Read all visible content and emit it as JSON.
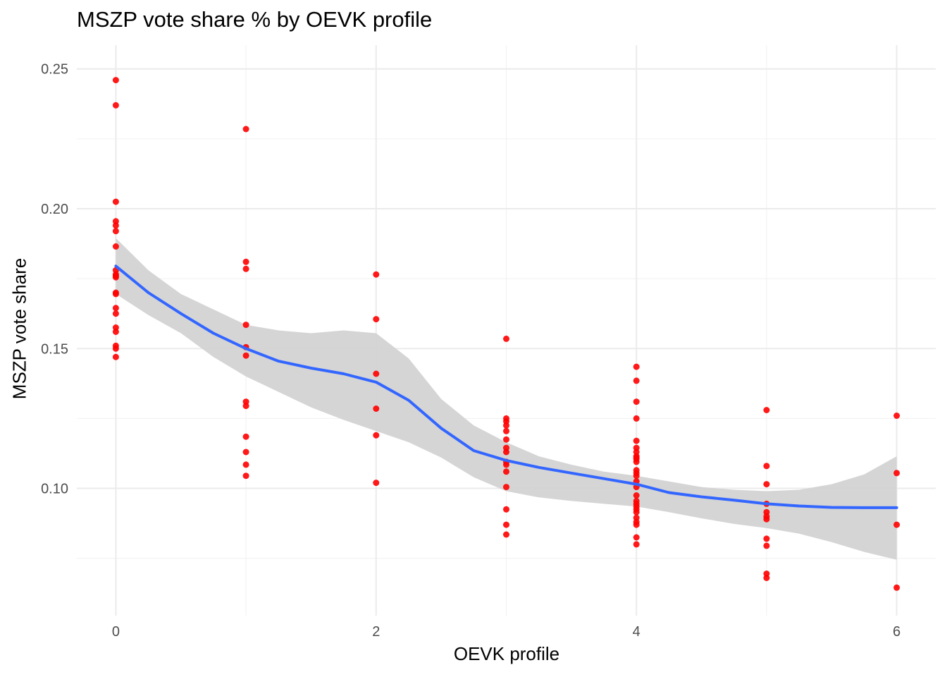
{
  "chart_data": {
    "type": "scatter",
    "title": "MSZP vote share % by OEVK profile",
    "xlabel": "OEVK profile",
    "ylabel": "MSZP vote share",
    "xlim": [
      -0.3,
      6.3
    ],
    "ylim": [
      0.0545,
      0.2585
    ],
    "x_ticks": [
      0,
      2,
      4,
      6
    ],
    "x_tick_labels": [
      "0",
      "2",
      "4",
      "6"
    ],
    "y_ticks": [
      0.1,
      0.15,
      0.2,
      0.25
    ],
    "y_tick_labels": [
      "0.10",
      "0.15",
      "0.20",
      "0.25"
    ],
    "grid": true,
    "point_color": "#ff0000",
    "smooth_color": "#3366ff",
    "ribbon_color": "#d3d3d3",
    "points": {
      "x": [
        0,
        0,
        0,
        0,
        0,
        0,
        0,
        0,
        0,
        0,
        0,
        0,
        0,
        0,
        0,
        0,
        0,
        0,
        0,
        0,
        1,
        1,
        1,
        1,
        1,
        1,
        1,
        1,
        1,
        1,
        1,
        1,
        2,
        2,
        2,
        2,
        2,
        2,
        3,
        3,
        3,
        3,
        3,
        3,
        3,
        3,
        3,
        3,
        3,
        3,
        3,
        3,
        3,
        4,
        4,
        4,
        4,
        4,
        4,
        4,
        4,
        4,
        4,
        4,
        4,
        4,
        4,
        4,
        4,
        4,
        4,
        4,
        4,
        4,
        4,
        4,
        4,
        4,
        4,
        4,
        5,
        5,
        5,
        5,
        5,
        5,
        5,
        5,
        5,
        5,
        5,
        6,
        6,
        6,
        6
      ],
      "y": [
        0.246,
        0.237,
        0.2025,
        0.1955,
        0.194,
        0.192,
        0.1865,
        0.178,
        0.1765,
        0.1755,
        0.17,
        0.1645,
        0.1625,
        0.1575,
        0.156,
        0.151,
        0.15,
        0.147,
        0.1695,
        0.176,
        0.2285,
        0.181,
        0.1785,
        0.1585,
        0.1505,
        0.1475,
        0.131,
        0.1295,
        0.1185,
        0.113,
        0.1085,
        0.1045,
        0.1765,
        0.1605,
        0.141,
        0.1285,
        0.119,
        0.102,
        0.1535,
        0.125,
        0.124,
        0.1205,
        0.1175,
        0.113,
        0.1095,
        0.1085,
        0.106,
        0.1005,
        0.0925,
        0.087,
        0.0835,
        0.1225,
        0.1145,
        0.1435,
        0.1385,
        0.131,
        0.125,
        0.117,
        0.1145,
        0.113,
        0.1115,
        0.1095,
        0.1065,
        0.1045,
        0.1025,
        0.0975,
        0.0955,
        0.0935,
        0.0925,
        0.0915,
        0.0895,
        0.088,
        0.087,
        0.0825,
        0.08,
        0.1105,
        0.1055,
        0.0945,
        0.1005,
        0.111,
        0.128,
        0.108,
        0.1015,
        0.0945,
        0.0915,
        0.089,
        0.082,
        0.0795,
        0.0695,
        0.068,
        0.09,
        0.126,
        0.1055,
        0.087,
        0.0645
      ]
    },
    "smooth": {
      "x": [
        0,
        0.25,
        0.5,
        0.75,
        1,
        1.25,
        1.5,
        1.75,
        2,
        2.25,
        2.5,
        2.75,
        3,
        3.25,
        3.5,
        3.75,
        4,
        4.25,
        4.5,
        4.75,
        5,
        5.25,
        5.5,
        5.75,
        6
      ],
      "y": [
        0.1795,
        0.17,
        0.1625,
        0.1555,
        0.15,
        0.1455,
        0.143,
        0.141,
        0.138,
        0.1315,
        0.1215,
        0.1135,
        0.11,
        0.1075,
        0.1055,
        0.1035,
        0.1015,
        0.0985,
        0.097,
        0.0958,
        0.0945,
        0.0937,
        0.0932,
        0.0931,
        0.0931
      ],
      "lower": [
        0.1695,
        0.162,
        0.1555,
        0.147,
        0.14,
        0.1345,
        0.129,
        0.1245,
        0.1205,
        0.1165,
        0.111,
        0.104,
        0.099,
        0.0968,
        0.0955,
        0.0945,
        0.0935,
        0.0915,
        0.0893,
        0.0873,
        0.0858,
        0.0838,
        0.0808,
        0.0773,
        0.0745
      ],
      "upper": [
        0.1895,
        0.178,
        0.1695,
        0.164,
        0.1585,
        0.1565,
        0.1555,
        0.1565,
        0.1555,
        0.1465,
        0.132,
        0.1225,
        0.1165,
        0.1115,
        0.1085,
        0.106,
        0.1045,
        0.1025,
        0.1005,
        0.0995,
        0.099,
        0.0995,
        0.1015,
        0.105,
        0.1115
      ]
    }
  }
}
